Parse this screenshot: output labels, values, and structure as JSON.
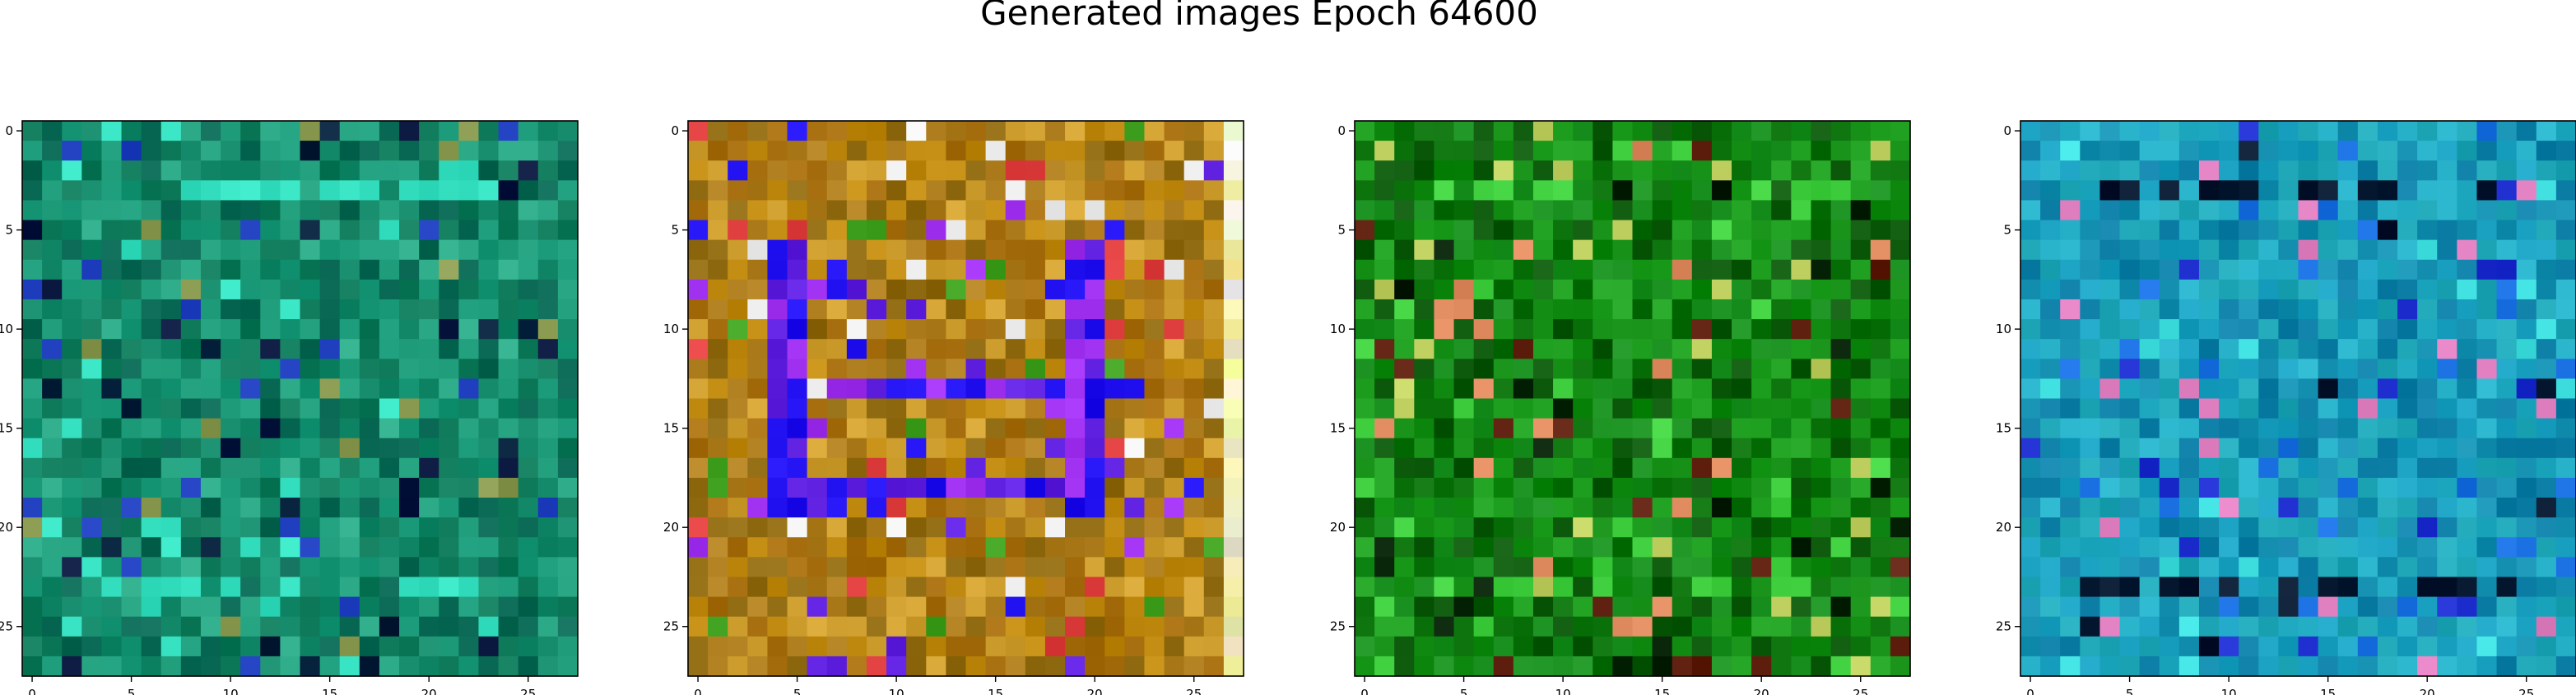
{
  "figure": {
    "title": "Generated images Epoch 64600"
  },
  "chart_data": [
    {
      "type": "heatmap",
      "grid_size": 28,
      "palette": "teal-green noise",
      "base_colors": [
        "#1a9a78",
        "#0e7a5a",
        "#2aa885",
        "#158a6a",
        "#0b6a55"
      ],
      "accent_colors": [
        "#0a1840",
        "#2040c0",
        "#35e0c0",
        "#8a9a50",
        "#05203a"
      ],
      "xticks": [
        "0",
        "5",
        "10",
        "15",
        "20",
        "25"
      ],
      "yticks": [
        "0",
        "5",
        "10",
        "15",
        "20",
        "25"
      ],
      "xlim": [
        -0.5,
        27.5
      ],
      "ylim": [
        27.5,
        -0.5
      ]
    },
    {
      "type": "heatmap",
      "grid_size": 28,
      "palette": "ochre with blue-violet ring",
      "base_colors": [
        "#c08a10",
        "#a87010",
        "#d0a030",
        "#b08020",
        "#906a10"
      ],
      "accent_colors": [
        "#6020e0",
        "#2010f0",
        "#a030f0",
        "#f0f0f0",
        "#e04040",
        "#40a020"
      ],
      "xticks": [
        "0",
        "5",
        "10",
        "15",
        "20",
        "25"
      ],
      "yticks": [
        "0",
        "5",
        "10",
        "15",
        "20",
        "25"
      ],
      "xlim": [
        -0.5,
        27.5
      ],
      "ylim": [
        27.5,
        -0.5
      ]
    },
    {
      "type": "heatmap",
      "grid_size": 28,
      "palette": "dark green noise",
      "base_colors": [
        "#108a10",
        "#0a700a",
        "#20a020",
        "#0d5a0d",
        "#1a9020"
      ],
      "accent_colors": [
        "#40d040",
        "#c0d060",
        "#602010",
        "#e08a60",
        "#042004"
      ],
      "xticks": [
        "0",
        "5",
        "10",
        "15",
        "20",
        "25"
      ],
      "yticks": [
        "0",
        "5",
        "10",
        "15",
        "20",
        "25"
      ],
      "xlim": [
        -0.5,
        27.5
      ],
      "ylim": [
        27.5,
        -0.5
      ]
    },
    {
      "type": "heatmap",
      "grid_size": 28,
      "palette": "cyan-blue noise",
      "base_colors": [
        "#1aa0c0",
        "#1590b0",
        "#25b0c8",
        "#0f80a8",
        "#20a8b8"
      ],
      "accent_colors": [
        "#2030d0",
        "#40e0e0",
        "#051830",
        "#e080c0",
        "#1a70e0"
      ],
      "xticks": [
        "0",
        "5",
        "10",
        "15",
        "20",
        "25"
      ],
      "yticks": [
        "0",
        "5",
        "10",
        "15",
        "20",
        "25"
      ],
      "xlim": [
        -0.5,
        27.5
      ],
      "ylim": [
        27.5,
        -0.5
      ]
    }
  ]
}
